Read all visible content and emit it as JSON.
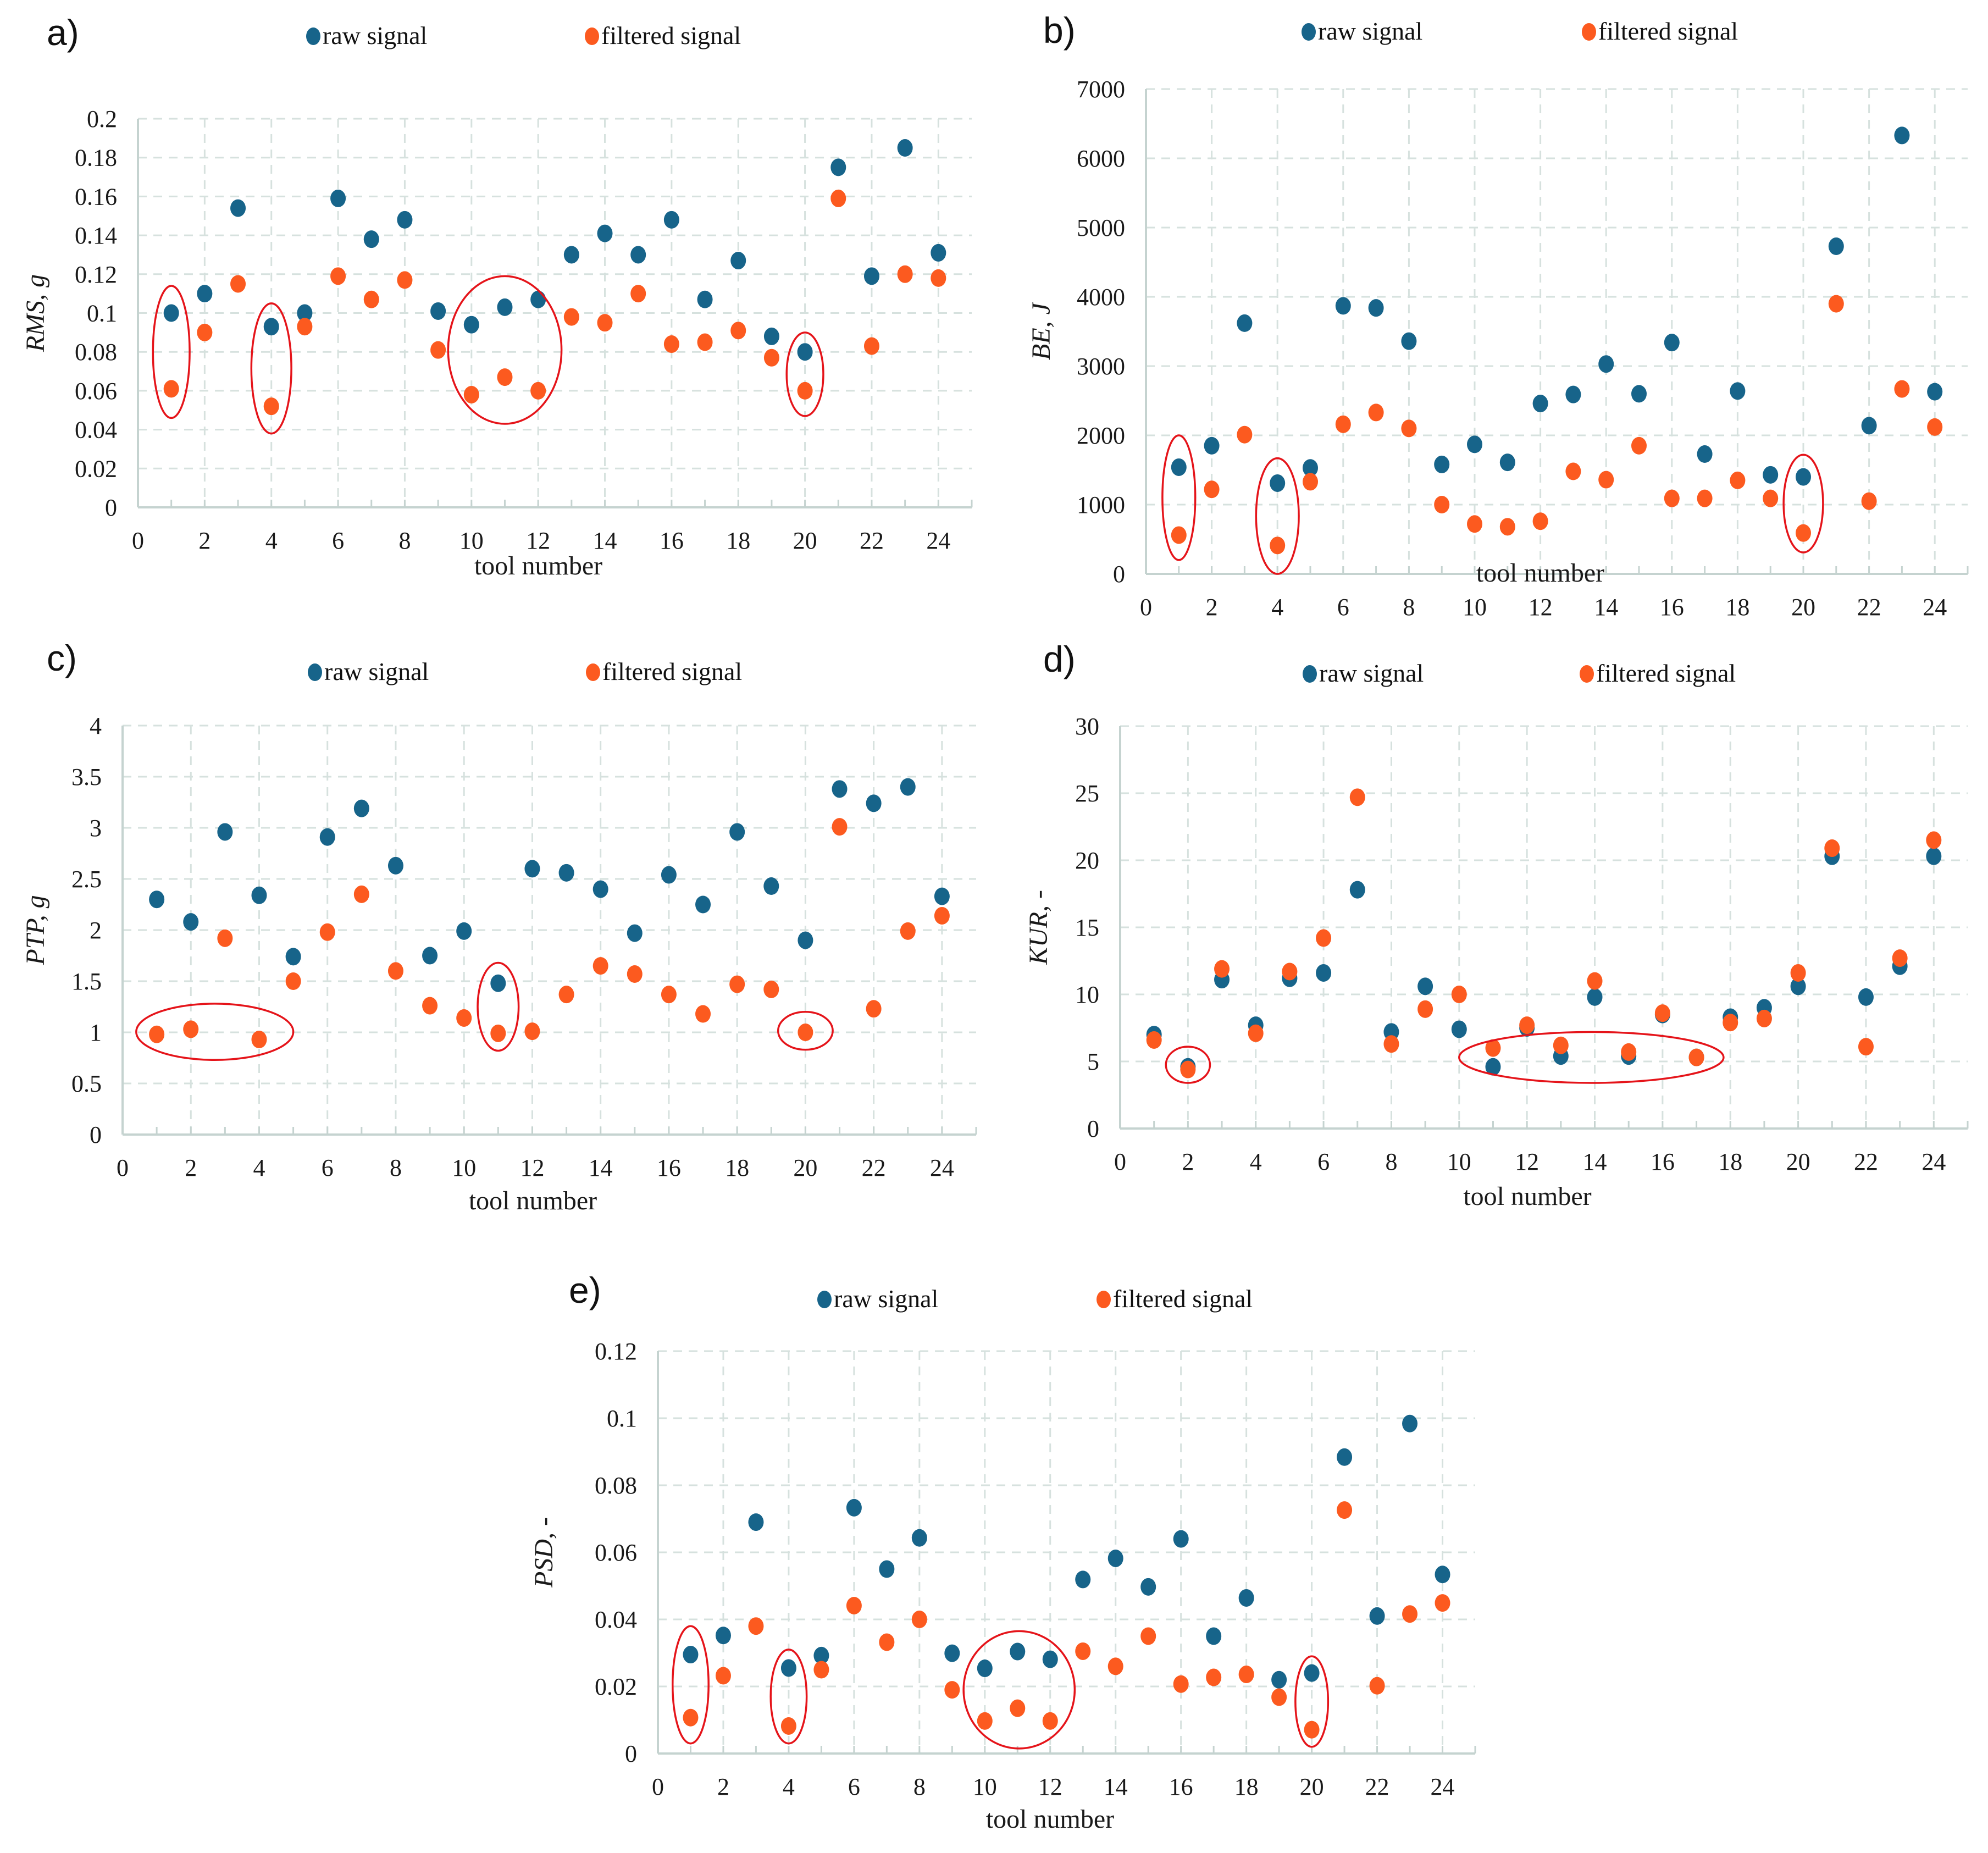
{
  "figure": {
    "legend": {
      "raw_label": "raw signal",
      "filtered_label": "filtered signal"
    },
    "colors": {
      "raw": "#17648a",
      "filtered": "#fc5a1f",
      "annotation": "#e5141a",
      "grid": "#d6e1de"
    }
  },
  "chart_data": [
    {
      "id": "a",
      "panel_label": "a)",
      "type": "scatter",
      "title": "",
      "xlabel": "tool number",
      "ylabel": "RMS, g",
      "xlim": [
        0,
        25
      ],
      "ylim": [
        0,
        0.2
      ],
      "xticks": [
        "0",
        "2",
        "4",
        "6",
        "8",
        "10",
        "12",
        "14",
        "16",
        "18",
        "20",
        "22",
        "24"
      ],
      "yticks": [
        "0",
        "0.02",
        "0.04",
        "0.06",
        "0.08",
        "0.1",
        "0.12",
        "0.14",
        "0.16",
        "0.18",
        "0.2"
      ],
      "grid": true,
      "legend_position": "top",
      "x": [
        1,
        2,
        3,
        4,
        5,
        6,
        7,
        8,
        9,
        10,
        11,
        12,
        13,
        14,
        15,
        16,
        17,
        18,
        19,
        20,
        21,
        22,
        23,
        24
      ],
      "series": [
        {
          "name": "raw signal",
          "values": [
            0.1,
            0.11,
            0.154,
            0.093,
            0.1,
            0.159,
            0.138,
            0.148,
            0.101,
            0.094,
            0.103,
            0.107,
            0.13,
            0.141,
            0.13,
            0.148,
            0.107,
            0.127,
            0.088,
            0.08,
            0.175,
            0.119,
            0.185,
            0.131
          ]
        },
        {
          "name": "filtered signal",
          "values": [
            0.061,
            0.09,
            0.115,
            0.052,
            0.093,
            0.119,
            0.107,
            0.117,
            0.081,
            0.058,
            0.067,
            0.06,
            0.098,
            0.095,
            0.11,
            0.084,
            0.085,
            0.091,
            0.077,
            0.06,
            0.159,
            0.083,
            0.12,
            0.118
          ]
        }
      ],
      "annotations": [
        {
          "type": "ellipse",
          "x_range": [
            0.45,
            1.55
          ],
          "y_range": [
            0.046,
            0.114
          ]
        },
        {
          "type": "ellipse",
          "x_range": [
            3.4,
            4.6
          ],
          "y_range": [
            0.038,
            0.105
          ]
        },
        {
          "type": "ellipse",
          "x_range": [
            9.3,
            12.7
          ],
          "y_range": [
            0.043,
            0.119
          ]
        },
        {
          "type": "ellipse",
          "x_range": [
            19.45,
            20.55
          ],
          "y_range": [
            0.047,
            0.09
          ]
        }
      ]
    },
    {
      "id": "b",
      "panel_label": "b)",
      "type": "scatter",
      "title": "",
      "xlabel": "tool number",
      "ylabel": "BE, J",
      "xlim": [
        0,
        25
      ],
      "ylim": [
        0,
        7000
      ],
      "xticks": [
        "0",
        "2",
        "4",
        "6",
        "8",
        "10",
        "12",
        "14",
        "16",
        "18",
        "20",
        "22",
        "24"
      ],
      "yticks": [
        "0",
        "1000",
        "2000",
        "3000",
        "4000",
        "5000",
        "6000",
        "7000"
      ],
      "grid": true,
      "legend_position": "top",
      "x": [
        1,
        2,
        3,
        4,
        5,
        6,
        7,
        8,
        9,
        10,
        11,
        12,
        13,
        14,
        15,
        16,
        17,
        18,
        19,
        20,
        21,
        22,
        23,
        24
      ],
      "series": [
        {
          "name": "raw signal",
          "values": [
            1540,
            1850,
            3620,
            1310,
            1530,
            3870,
            3840,
            3360,
            1580,
            1870,
            1610,
            2460,
            2590,
            3030,
            2600,
            3340,
            1730,
            2640,
            1430,
            1400,
            4730,
            2140,
            6330,
            2630
          ]
        },
        {
          "name": "filtered signal",
          "values": [
            560,
            1220,
            2010,
            410,
            1330,
            2160,
            2330,
            2100,
            1000,
            720,
            680,
            760,
            1480,
            1360,
            1850,
            1090,
            1090,
            1350,
            1090,
            590,
            3900,
            1050,
            2670,
            2120
          ]
        }
      ],
      "annotations": [
        {
          "type": "ellipse",
          "x_range": [
            0.5,
            1.5
          ],
          "y_range": [
            200,
            2000
          ]
        },
        {
          "type": "ellipse",
          "x_range": [
            3.35,
            4.65
          ],
          "y_range": [
            0,
            1670
          ]
        },
        {
          "type": "ellipse",
          "x_range": [
            19.4,
            20.6
          ],
          "y_range": [
            310,
            1720
          ]
        }
      ]
    },
    {
      "id": "c",
      "panel_label": "c)",
      "type": "scatter",
      "title": "",
      "xlabel": "tool number",
      "ylabel": "PTP, g",
      "xlim": [
        0,
        25
      ],
      "ylim": [
        0,
        4
      ],
      "xticks": [
        "0",
        "2",
        "4",
        "6",
        "8",
        "10",
        "12",
        "14",
        "16",
        "18",
        "20",
        "22",
        "24"
      ],
      "yticks": [
        "0",
        "0.5",
        "1",
        "1.5",
        "2",
        "2.5",
        "3",
        "3.5",
        "4"
      ],
      "grid": true,
      "legend_position": "top",
      "x": [
        1,
        2,
        3,
        4,
        5,
        6,
        7,
        8,
        9,
        10,
        11,
        12,
        13,
        14,
        15,
        16,
        17,
        18,
        19,
        20,
        21,
        22,
        23,
        24
      ],
      "series": [
        {
          "name": "raw signal",
          "values": [
            2.3,
            2.08,
            2.96,
            2.34,
            1.74,
            2.91,
            3.19,
            2.63,
            1.75,
            1.99,
            1.48,
            2.6,
            2.56,
            2.4,
            1.97,
            2.54,
            2.25,
            2.96,
            2.43,
            1.9,
            3.38,
            3.24,
            3.4,
            2.33
          ]
        },
        {
          "name": "filtered signal",
          "values": [
            0.98,
            1.03,
            1.92,
            0.93,
            1.5,
            1.98,
            2.35,
            1.6,
            1.26,
            1.14,
            0.99,
            1.01,
            1.37,
            1.65,
            1.57,
            1.37,
            1.18,
            1.47,
            1.42,
            1.0,
            3.01,
            1.23,
            1.99,
            2.14
          ]
        }
      ],
      "annotations": [
        {
          "type": "ellipse",
          "x_range": [
            0.4,
            5.0
          ],
          "y_range": [
            0.73,
            1.28
          ]
        },
        {
          "type": "ellipse",
          "x_range": [
            10.4,
            11.6
          ],
          "y_range": [
            0.82,
            1.68
          ]
        },
        {
          "type": "ellipse",
          "x_range": [
            19.2,
            20.8
          ],
          "y_range": [
            0.83,
            1.2
          ]
        }
      ]
    },
    {
      "id": "d",
      "panel_label": "d)",
      "type": "scatter",
      "title": "",
      "xlabel": "tool number",
      "ylabel": "KUR, -",
      "xlim": [
        0,
        25
      ],
      "ylim": [
        0,
        30
      ],
      "xticks": [
        "0",
        "2",
        "4",
        "6",
        "8",
        "10",
        "12",
        "14",
        "16",
        "18",
        "20",
        "22",
        "24"
      ],
      "yticks": [
        "0",
        "5",
        "10",
        "15",
        "20",
        "25",
        "30"
      ],
      "grid": true,
      "legend_position": "top",
      "x": [
        1,
        2,
        3,
        4,
        5,
        6,
        7,
        8,
        9,
        10,
        11,
        12,
        13,
        14,
        15,
        16,
        17,
        18,
        19,
        20,
        21,
        22,
        23,
        24
      ],
      "series": [
        {
          "name": "raw signal",
          "values": [
            7.0,
            4.6,
            11.1,
            7.7,
            11.2,
            11.6,
            17.8,
            7.2,
            10.6,
            7.4,
            4.6,
            7.5,
            5.4,
            9.8,
            5.4,
            8.5,
            5.3,
            8.3,
            9.0,
            10.6,
            20.3,
            9.8,
            12.1,
            20.3
          ]
        },
        {
          "name": "filtered signal",
          "values": [
            6.6,
            4.4,
            11.9,
            7.1,
            11.7,
            14.2,
            24.7,
            6.3,
            8.9,
            10.0,
            6.0,
            7.7,
            6.2,
            11.0,
            5.7,
            8.6,
            5.3,
            7.9,
            8.2,
            11.6,
            20.9,
            6.1,
            12.7,
            21.5
          ]
        }
      ],
      "annotations": [
        {
          "type": "ellipse",
          "x_range": [
            1.35,
            2.65
          ],
          "y_range": [
            3.4,
            6.1
          ]
        },
        {
          "type": "ellipse",
          "x_range": [
            10.0,
            17.8
          ],
          "y_range": [
            3.4,
            7.2
          ]
        }
      ]
    },
    {
      "id": "e",
      "panel_label": "e)",
      "type": "scatter",
      "title": "",
      "xlabel": "tool number",
      "ylabel": "PSD, -",
      "xlim": [
        0,
        25
      ],
      "ylim": [
        0,
        0.12
      ],
      "xticks": [
        "0",
        "2",
        "4",
        "6",
        "8",
        "10",
        "12",
        "14",
        "16",
        "18",
        "20",
        "22",
        "24"
      ],
      "yticks": [
        "0",
        "0.02",
        "0.04",
        "0.06",
        "0.08",
        "0.1",
        "0.12"
      ],
      "grid": true,
      "legend_position": "top",
      "x": [
        1,
        2,
        3,
        4,
        5,
        6,
        7,
        8,
        9,
        10,
        11,
        12,
        13,
        14,
        15,
        16,
        17,
        18,
        19,
        20,
        21,
        22,
        23,
        24
      ],
      "series": [
        {
          "name": "raw signal",
          "values": [
            0.0295,
            0.0352,
            0.069,
            0.0255,
            0.0292,
            0.0733,
            0.055,
            0.0643,
            0.0299,
            0.0254,
            0.0304,
            0.0281,
            0.0519,
            0.0582,
            0.0497,
            0.064,
            0.035,
            0.0464,
            0.022,
            0.024,
            0.0884,
            0.041,
            0.0984,
            0.0534
          ]
        },
        {
          "name": "filtered signal",
          "values": [
            0.0107,
            0.0232,
            0.038,
            0.0082,
            0.025,
            0.0441,
            0.0332,
            0.04,
            0.019,
            0.0097,
            0.0135,
            0.0097,
            0.0305,
            0.026,
            0.035,
            0.0207,
            0.0227,
            0.0236,
            0.0168,
            0.0071,
            0.0726,
            0.0202,
            0.0416,
            0.0449
          ]
        }
      ],
      "annotations": [
        {
          "type": "ellipse",
          "x_range": [
            0.45,
            1.55
          ],
          "y_range": [
            0.003,
            0.038
          ]
        },
        {
          "type": "ellipse",
          "x_range": [
            3.45,
            4.55
          ],
          "y_range": [
            0.003,
            0.031
          ]
        },
        {
          "type": "ellipse",
          "x_range": [
            9.35,
            12.75
          ],
          "y_range": [
            0.0015,
            0.0365
          ]
        },
        {
          "type": "ellipse",
          "x_range": [
            19.5,
            20.5
          ],
          "y_range": [
            0.002,
            0.029
          ]
        }
      ]
    }
  ]
}
